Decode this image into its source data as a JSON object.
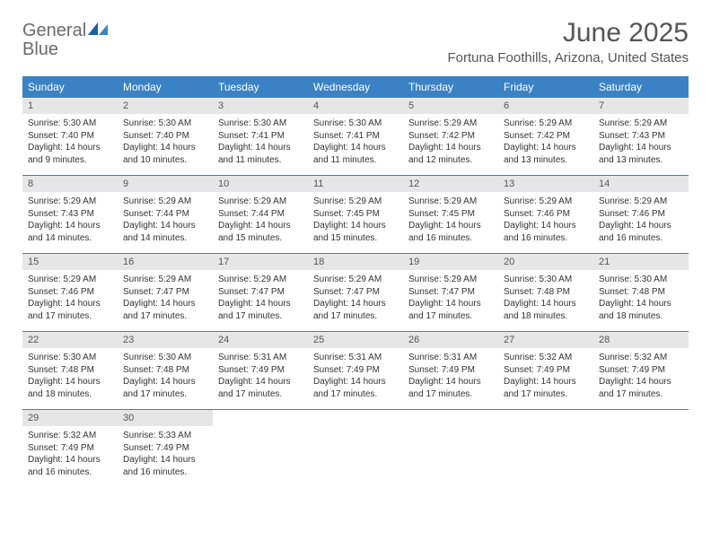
{
  "brand": {
    "word1": "General",
    "word2": "Blue"
  },
  "title": "June 2025",
  "location": "Fortuna Foothills, Arizona, United States",
  "colors": {
    "header_bg": "#3b82c4",
    "header_text": "#ffffff",
    "daynum_bg": "#e6e6e6",
    "daynum_text": "#555555",
    "body_text": "#333333",
    "page_bg": "#ffffff",
    "logo_gray": "#6a6a6a",
    "logo_blue": "#3b82c4"
  },
  "typography": {
    "title_fontsize": 30,
    "location_fontsize": 15,
    "dow_fontsize": 12,
    "daynum_fontsize": 11,
    "cell_fontsize": 10
  },
  "days_of_week": [
    "Sunday",
    "Monday",
    "Tuesday",
    "Wednesday",
    "Thursday",
    "Friday",
    "Saturday"
  ],
  "weeks": [
    [
      {
        "n": "1",
        "sunrise": "Sunrise: 5:30 AM",
        "sunset": "Sunset: 7:40 PM",
        "daylight": "Daylight: 14 hours and 9 minutes."
      },
      {
        "n": "2",
        "sunrise": "Sunrise: 5:30 AM",
        "sunset": "Sunset: 7:40 PM",
        "daylight": "Daylight: 14 hours and 10 minutes."
      },
      {
        "n": "3",
        "sunrise": "Sunrise: 5:30 AM",
        "sunset": "Sunset: 7:41 PM",
        "daylight": "Daylight: 14 hours and 11 minutes."
      },
      {
        "n": "4",
        "sunrise": "Sunrise: 5:30 AM",
        "sunset": "Sunset: 7:41 PM",
        "daylight": "Daylight: 14 hours and 11 minutes."
      },
      {
        "n": "5",
        "sunrise": "Sunrise: 5:29 AM",
        "sunset": "Sunset: 7:42 PM",
        "daylight": "Daylight: 14 hours and 12 minutes."
      },
      {
        "n": "6",
        "sunrise": "Sunrise: 5:29 AM",
        "sunset": "Sunset: 7:42 PM",
        "daylight": "Daylight: 14 hours and 13 minutes."
      },
      {
        "n": "7",
        "sunrise": "Sunrise: 5:29 AM",
        "sunset": "Sunset: 7:43 PM",
        "daylight": "Daylight: 14 hours and 13 minutes."
      }
    ],
    [
      {
        "n": "8",
        "sunrise": "Sunrise: 5:29 AM",
        "sunset": "Sunset: 7:43 PM",
        "daylight": "Daylight: 14 hours and 14 minutes."
      },
      {
        "n": "9",
        "sunrise": "Sunrise: 5:29 AM",
        "sunset": "Sunset: 7:44 PM",
        "daylight": "Daylight: 14 hours and 14 minutes."
      },
      {
        "n": "10",
        "sunrise": "Sunrise: 5:29 AM",
        "sunset": "Sunset: 7:44 PM",
        "daylight": "Daylight: 14 hours and 15 minutes."
      },
      {
        "n": "11",
        "sunrise": "Sunrise: 5:29 AM",
        "sunset": "Sunset: 7:45 PM",
        "daylight": "Daylight: 14 hours and 15 minutes."
      },
      {
        "n": "12",
        "sunrise": "Sunrise: 5:29 AM",
        "sunset": "Sunset: 7:45 PM",
        "daylight": "Daylight: 14 hours and 16 minutes."
      },
      {
        "n": "13",
        "sunrise": "Sunrise: 5:29 AM",
        "sunset": "Sunset: 7:46 PM",
        "daylight": "Daylight: 14 hours and 16 minutes."
      },
      {
        "n": "14",
        "sunrise": "Sunrise: 5:29 AM",
        "sunset": "Sunset: 7:46 PM",
        "daylight": "Daylight: 14 hours and 16 minutes."
      }
    ],
    [
      {
        "n": "15",
        "sunrise": "Sunrise: 5:29 AM",
        "sunset": "Sunset: 7:46 PM",
        "daylight": "Daylight: 14 hours and 17 minutes."
      },
      {
        "n": "16",
        "sunrise": "Sunrise: 5:29 AM",
        "sunset": "Sunset: 7:47 PM",
        "daylight": "Daylight: 14 hours and 17 minutes."
      },
      {
        "n": "17",
        "sunrise": "Sunrise: 5:29 AM",
        "sunset": "Sunset: 7:47 PM",
        "daylight": "Daylight: 14 hours and 17 minutes."
      },
      {
        "n": "18",
        "sunrise": "Sunrise: 5:29 AM",
        "sunset": "Sunset: 7:47 PM",
        "daylight": "Daylight: 14 hours and 17 minutes."
      },
      {
        "n": "19",
        "sunrise": "Sunrise: 5:29 AM",
        "sunset": "Sunset: 7:47 PM",
        "daylight": "Daylight: 14 hours and 17 minutes."
      },
      {
        "n": "20",
        "sunrise": "Sunrise: 5:30 AM",
        "sunset": "Sunset: 7:48 PM",
        "daylight": "Daylight: 14 hours and 18 minutes."
      },
      {
        "n": "21",
        "sunrise": "Sunrise: 5:30 AM",
        "sunset": "Sunset: 7:48 PM",
        "daylight": "Daylight: 14 hours and 18 minutes."
      }
    ],
    [
      {
        "n": "22",
        "sunrise": "Sunrise: 5:30 AM",
        "sunset": "Sunset: 7:48 PM",
        "daylight": "Daylight: 14 hours and 18 minutes."
      },
      {
        "n": "23",
        "sunrise": "Sunrise: 5:30 AM",
        "sunset": "Sunset: 7:48 PM",
        "daylight": "Daylight: 14 hours and 17 minutes."
      },
      {
        "n": "24",
        "sunrise": "Sunrise: 5:31 AM",
        "sunset": "Sunset: 7:49 PM",
        "daylight": "Daylight: 14 hours and 17 minutes."
      },
      {
        "n": "25",
        "sunrise": "Sunrise: 5:31 AM",
        "sunset": "Sunset: 7:49 PM",
        "daylight": "Daylight: 14 hours and 17 minutes."
      },
      {
        "n": "26",
        "sunrise": "Sunrise: 5:31 AM",
        "sunset": "Sunset: 7:49 PM",
        "daylight": "Daylight: 14 hours and 17 minutes."
      },
      {
        "n": "27",
        "sunrise": "Sunrise: 5:32 AM",
        "sunset": "Sunset: 7:49 PM",
        "daylight": "Daylight: 14 hours and 17 minutes."
      },
      {
        "n": "28",
        "sunrise": "Sunrise: 5:32 AM",
        "sunset": "Sunset: 7:49 PM",
        "daylight": "Daylight: 14 hours and 17 minutes."
      }
    ],
    [
      {
        "n": "29",
        "sunrise": "Sunrise: 5:32 AM",
        "sunset": "Sunset: 7:49 PM",
        "daylight": "Daylight: 14 hours and 16 minutes."
      },
      {
        "n": "30",
        "sunrise": "Sunrise: 5:33 AM",
        "sunset": "Sunset: 7:49 PM",
        "daylight": "Daylight: 14 hours and 16 minutes."
      },
      null,
      null,
      null,
      null,
      null
    ]
  ]
}
